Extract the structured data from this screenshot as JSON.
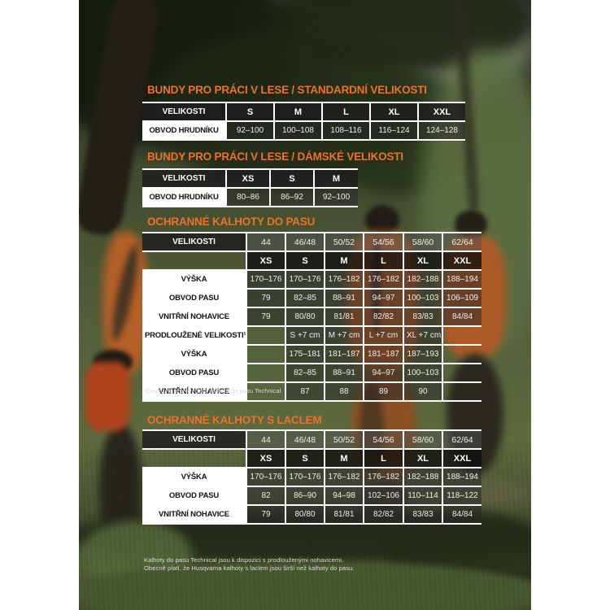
{
  "colors": {
    "accent": "#e8732a",
    "head-bg": "rgba(30,30,30,0.85)",
    "cell-bg": "rgba(40,40,40,0.52)",
    "note-color": "#dcdcdc"
  },
  "tables": [
    {
      "title": "BUNDY PRO PRÁCI V LESE / STANDARDNÍ VELIKOSTI",
      "rows": [
        {
          "kind": "head",
          "cells": [
            "VELIKOSTI",
            "S",
            "M",
            "L",
            "XL",
            "XXL"
          ]
        },
        {
          "kind": "data",
          "cells": [
            "OBVOD HRUDNÍKU",
            "92–100",
            "100–108",
            "108–116",
            "116–124",
            "124–128"
          ]
        }
      ]
    },
    {
      "title": "BUNDY PRO PRÁCI V LESE / DÁMSKÉ VELIKOSTI",
      "rows": [
        {
          "kind": "head",
          "cells": [
            "VELIKOSTI",
            "XS",
            "S",
            "M"
          ]
        },
        {
          "kind": "data",
          "cells": [
            "OBVOD HRUDNÍKU",
            "80–86",
            "86–92",
            "92–100"
          ]
        }
      ]
    },
    {
      "title": "OCHRANNÉ KALHOTY DO PASU",
      "footnote": "¹Dostupné v provedení kalhoty do pasu Technical",
      "rows": [
        {
          "kind": "head2",
          "cells": [
            "VELIKOSTI",
            "44",
            "46/48",
            "50/52",
            "54/56",
            "58/60",
            "62/64"
          ]
        },
        {
          "kind": "subhead",
          "cells": [
            "",
            "XS",
            "S",
            "M",
            "L",
            "XL",
            "XXL"
          ]
        },
        {
          "kind": "data",
          "cells": [
            "VÝŠKA",
            "170–176",
            "170–176",
            "176–182",
            "176–182",
            "182–188",
            "188–194"
          ]
        },
        {
          "kind": "data",
          "cells": [
            "OBVOD PASU",
            "79",
            "82–85",
            "88–91",
            "94–97",
            "100–103",
            "106–109"
          ]
        },
        {
          "kind": "data",
          "cells": [
            "VNITŘNÍ NOHAVICE",
            "79",
            "80/80",
            "81/81",
            "82/82",
            "83/83",
            "84/84"
          ]
        },
        {
          "kind": "data",
          "cells": [
            "PRODLOUŽENÉ VELIKOSTI¹",
            "",
            "S +7 cm",
            "M +7 cm",
            "L +7 cm",
            "XL +7 cm",
            null
          ]
        },
        {
          "kind": "data",
          "cells": [
            "VÝŠKA",
            "",
            "175–181",
            "181–187",
            "181–187",
            "187–193",
            null
          ]
        },
        {
          "kind": "data",
          "cells": [
            "OBVOD PASU",
            "",
            "82–85",
            "88–91",
            "94–97",
            "100–103",
            null
          ]
        },
        {
          "kind": "data",
          "cells": [
            "VNITŘNÍ NOHAVICE",
            "",
            "87",
            "88",
            "89",
            "90",
            null
          ]
        }
      ]
    },
    {
      "title": "OCHRANNÉ KALHOTY S LACLEM",
      "rows": [
        {
          "kind": "head2",
          "cells": [
            "VELIKOSTI",
            "44",
            "46/48",
            "50/52",
            "54/56",
            "58/60",
            "62/64"
          ]
        },
        {
          "kind": "subhead",
          "cells": [
            "",
            "XS",
            "S",
            "M",
            "L",
            "XL",
            "XXL"
          ]
        },
        {
          "kind": "data",
          "cells": [
            "VÝŠKA",
            "170–176",
            "170–176",
            "176–182",
            "176–182",
            "182–188",
            "188–194"
          ]
        },
        {
          "kind": "data",
          "cells": [
            "OBVOD PASU",
            "82",
            "86–90",
            "94–98",
            "102–106",
            "110–114",
            "118–122"
          ]
        },
        {
          "kind": "data",
          "cells": [
            "VNITŘNÍ NOHAVICE",
            "79",
            "80/80",
            "81/81",
            "82/82",
            "83/83",
            "84/84"
          ]
        }
      ]
    }
  ],
  "page_footnotes": [
    "Kalhoty do pasu Technical jsou k dispozici s prodlouženými nohavicemi.",
    "Obecně platí, že Husqvarna kalhoty s laclem jsou širší než kalhoty do pasu."
  ]
}
